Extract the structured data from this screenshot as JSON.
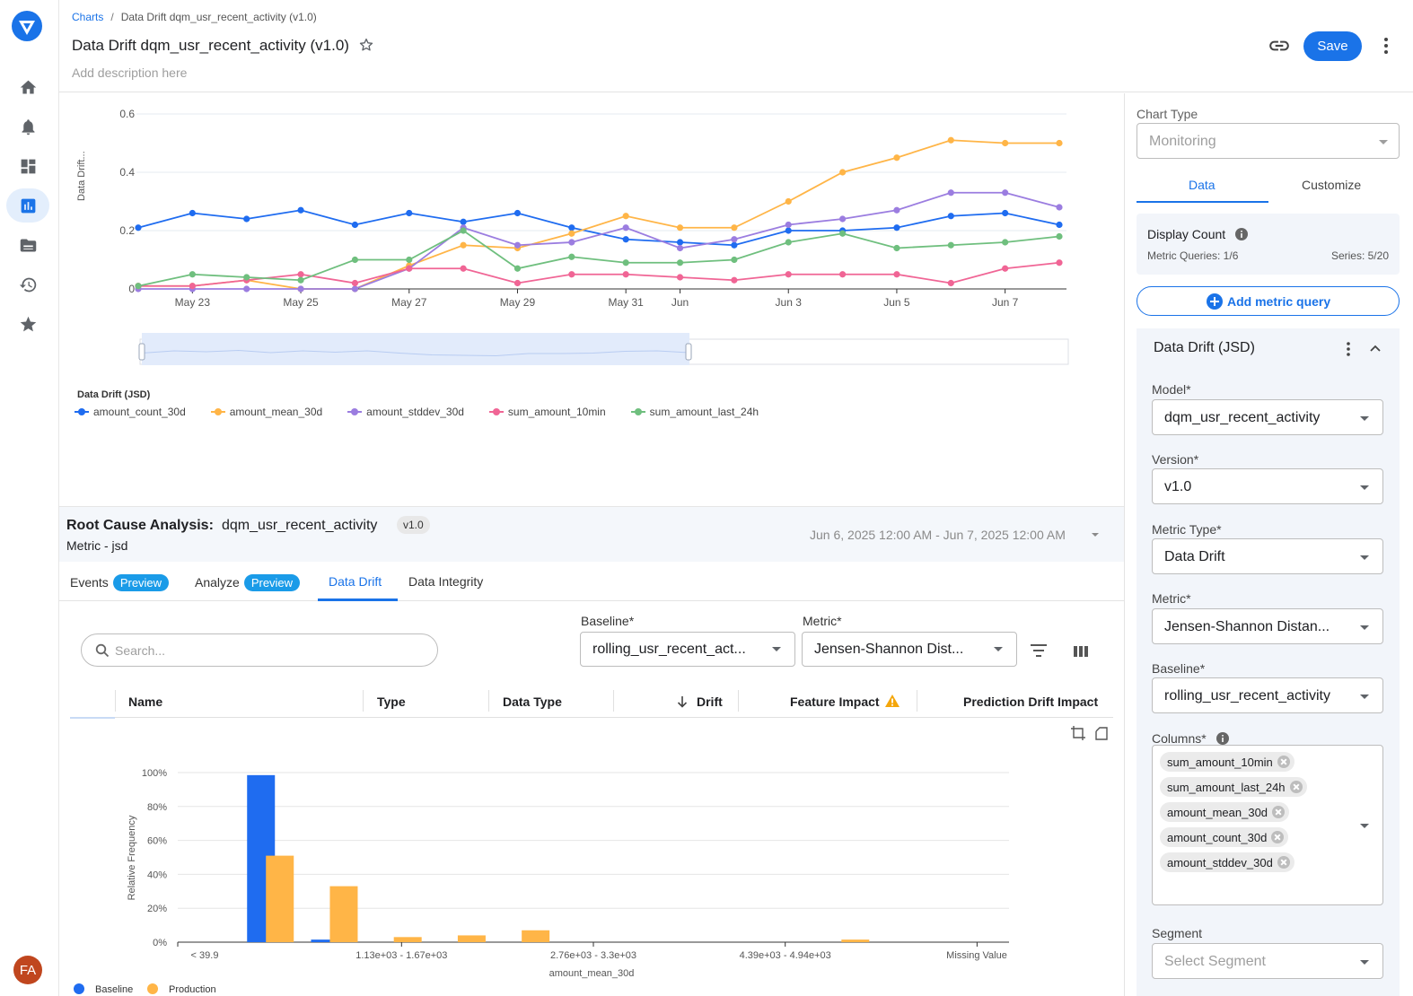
{
  "breadcrumb": {
    "root": "Charts",
    "sep": "/",
    "current": "Data Drift dqm_usr_recent_activity (v1.0)"
  },
  "header": {
    "title": "Data Drift dqm_usr_recent_activity (v1.0)",
    "description_placeholder": "Add description here",
    "save_label": "Save"
  },
  "user": {
    "initials": "FA"
  },
  "colors": {
    "accent": "#1a73e8",
    "amount_count_30d": "#1f6cf0",
    "amount_mean_30d": "#ffb547",
    "amount_stddev_30d": "#9b7de0",
    "sum_amount_10min": "#f06595",
    "sum_amount_last_24h": "#6fbf7e"
  },
  "chart_data": [
    {
      "type": "line",
      "ylabel": "Data Drift...",
      "ylim": [
        0,
        0.6
      ],
      "yticks": [
        "0",
        "0.2",
        "0.4",
        "0.6"
      ],
      "x": [
        "May 22",
        "May 23",
        "May 24",
        "May 25",
        "May 26",
        "May 27",
        "May 28",
        "May 29",
        "May 30",
        "May 31",
        "Jun 1",
        "Jun 2",
        "Jun 3",
        "Jun 4",
        "Jun 5",
        "Jun 6",
        "Jun 7",
        "Jun 8"
      ],
      "xticks": [
        {
          "label": "May 23",
          "at": "May 23"
        },
        {
          "label": "May 25",
          "at": "May 25"
        },
        {
          "label": "May 27",
          "at": "May 27"
        },
        {
          "label": "May 29",
          "at": "May 29"
        },
        {
          "label": "May 31",
          "at": "May 31"
        },
        {
          "label": "Jun",
          "at": "Jun 1"
        },
        {
          "label": "Jun 3",
          "at": "Jun 3"
        },
        {
          "label": "Jun 5",
          "at": "Jun 5"
        },
        {
          "label": "Jun 7",
          "at": "Jun 7"
        }
      ],
      "legend_title": "Data Drift (JSD)",
      "legend_position": "bottom-left",
      "grid": true,
      "series": [
        {
          "name": "amount_count_30d",
          "values": [
            0.21,
            0.26,
            0.24,
            0.27,
            0.22,
            0.26,
            0.23,
            0.26,
            0.21,
            0.17,
            0.16,
            0.15,
            0.2,
            0.2,
            0.21,
            0.25,
            0.26,
            0.22
          ]
        },
        {
          "name": "amount_mean_30d",
          "values": [
            0.01,
            0.01,
            0.03,
            0.0,
            0.0,
            0.08,
            0.15,
            0.14,
            0.19,
            0.25,
            0.21,
            0.21,
            0.3,
            0.4,
            0.45,
            0.51,
            0.5,
            0.5
          ]
        },
        {
          "name": "amount_stddev_30d",
          "values": [
            0.0,
            0.0,
            0.0,
            0.0,
            0.0,
            0.07,
            0.21,
            0.15,
            0.16,
            0.21,
            0.14,
            0.17,
            0.22,
            0.24,
            0.27,
            0.33,
            0.33,
            0.28
          ]
        },
        {
          "name": "sum_amount_10min",
          "values": [
            0.01,
            0.01,
            0.03,
            0.05,
            0.02,
            0.07,
            0.07,
            0.02,
            0.05,
            0.05,
            0.04,
            0.03,
            0.05,
            0.05,
            0.05,
            0.02,
            0.07,
            0.09
          ]
        },
        {
          "name": "sum_amount_last_24h",
          "values": [
            0.01,
            0.05,
            0.04,
            0.03,
            0.1,
            0.1,
            0.2,
            0.07,
            0.11,
            0.09,
            0.09,
            0.1,
            0.16,
            0.19,
            0.14,
            0.15,
            0.16,
            0.18
          ]
        }
      ]
    },
    {
      "type": "bar",
      "xlabel": "amount_mean_30d",
      "ylabel": "Relative Frequency",
      "ylim": [
        0,
        100
      ],
      "yticks": [
        "0%",
        "20%",
        "40%",
        "60%",
        "80%",
        "100%"
      ],
      "x_tick_labels": [
        "< 39.9",
        "1.13e+03 - 1.67e+03",
        "2.76e+03 - 3.3e+03",
        "4.39e+03 - 4.94e+03",
        "Missing Value"
      ],
      "x_tick_bins": [
        0,
        3,
        6,
        9,
        12
      ],
      "bin_count": 13,
      "legend_position": "bottom-left",
      "series": [
        {
          "name": "Baseline",
          "values": [
            0,
            98.5,
            1.5,
            0,
            0,
            0,
            0,
            0,
            0,
            0,
            0,
            0,
            0
          ]
        },
        {
          "name": "Production",
          "values": [
            0,
            51,
            33,
            3,
            4,
            7,
            0,
            0,
            0,
            0,
            1.5,
            0,
            0
          ]
        }
      ]
    }
  ],
  "rca": {
    "label": "Root Cause Analysis:",
    "model": "dqm_usr_recent_activity",
    "version": "v1.0",
    "metric": "Metric - jsd",
    "range": "Jun 6, 2025 12:00 AM - Jun 7, 2025 12:00 AM"
  },
  "tabs": [
    {
      "label": "Events",
      "badge": "Preview"
    },
    {
      "label": "Analyze",
      "badge": "Preview"
    },
    {
      "label": "Data Drift",
      "badge": ""
    },
    {
      "label": "Data Integrity",
      "badge": ""
    }
  ],
  "search": {
    "placeholder": "Search..."
  },
  "filters": {
    "baseline_label": "Baseline*",
    "baseline_value": "rolling_usr_recent_act...",
    "metric_label": "Metric*",
    "metric_value": "Jensen-Shannon Dist..."
  },
  "table": {
    "headers": {
      "name": "Name",
      "type": "Type",
      "data_type": "Data Type",
      "drift": "Drift",
      "feature_impact": "Feature Impact",
      "prediction_drift_impact": "Prediction Drift Impact"
    }
  },
  "panel": {
    "chart_type_label": "Chart Type",
    "chart_type_value": "Monitoring",
    "tabs": [
      "Data",
      "Customize"
    ],
    "display_count_label": "Display Count",
    "metric_queries": "Metric Queries: 1/6",
    "series": "Series: 5/20",
    "add_query_label": "Add metric query",
    "query_title": "Data Drift (JSD)",
    "model_label": "Model*",
    "model_value": "dqm_usr_recent_activity",
    "version_label": "Version*",
    "version_value": "v1.0",
    "metric_type_label": "Metric Type*",
    "metric_type_value": "Data Drift",
    "metric_label": "Metric*",
    "metric_value": "Jensen-Shannon Distan...",
    "baseline_label": "Baseline*",
    "baseline_value": "rolling_usr_recent_activity",
    "columns_label": "Columns*",
    "columns": [
      "sum_amount_10min",
      "sum_amount_last_24h",
      "amount_mean_30d",
      "amount_count_30d",
      "amount_stddev_30d"
    ],
    "segment_label": "Segment",
    "segment_placeholder": "Select Segment"
  }
}
